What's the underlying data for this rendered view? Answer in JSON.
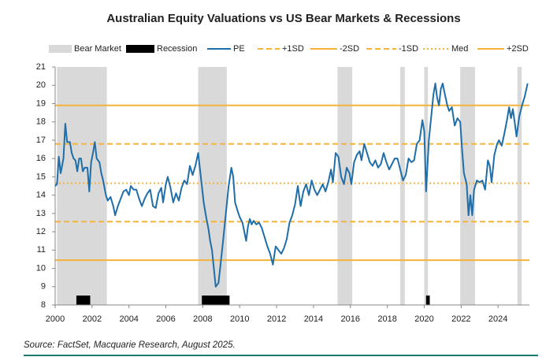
{
  "chart_data": {
    "type": "line",
    "title": "Australian Equity Valuations vs US Bear Markets & Recessions",
    "source": "Source: FactSet, Macquarie Research, August 2025.",
    "xlim": [
      2000,
      2025.7
    ],
    "xticks": [
      2000,
      2002,
      2004,
      2006,
      2008,
      2010,
      2012,
      2014,
      2016,
      2018,
      2020,
      2022,
      2024
    ],
    "ylim": [
      8,
      21
    ],
    "yticks": [
      8,
      9,
      10,
      11,
      12,
      13,
      14,
      15,
      16,
      17,
      18,
      19,
      20,
      21
    ],
    "grid": false,
    "bear_markets": {
      "name": "Bear Market",
      "color": "#d9d9d9",
      "ranges": [
        [
          2000.1,
          2002.8
        ],
        [
          2007.75,
          2009.3
        ],
        [
          2015.3,
          2016.1
        ],
        [
          2018.7,
          2018.95
        ],
        [
          2020.0,
          2020.2
        ],
        [
          2021.95,
          2022.75
        ],
        [
          2025.05,
          2025.28
        ]
      ]
    },
    "recessions": {
      "name": "Recession",
      "color": "#000000",
      "ranges": [
        [
          2001.15,
          2001.9
        ],
        [
          2007.95,
          2009.45
        ],
        [
          2020.1,
          2020.3
        ]
      ]
    },
    "x": [
      2000.0,
      2000.1,
      2000.2,
      2000.3,
      2000.45,
      2000.55,
      2000.65,
      2000.8,
      2000.9,
      2001.0,
      2001.1,
      2001.2,
      2001.3,
      2001.4,
      2001.5,
      2001.6,
      2001.75,
      2001.85,
      2001.95,
      2002.05,
      2002.15,
      2002.25,
      2002.4,
      2002.5,
      2002.6,
      2002.75,
      2002.85,
      2003.0,
      2003.15,
      2003.25,
      2003.4,
      2003.55,
      2003.7,
      2003.85,
      2004.0,
      2004.1,
      2004.25,
      2004.4,
      2004.55,
      2004.7,
      2004.85,
      2005.0,
      2005.15,
      2005.3,
      2005.45,
      2005.6,
      2005.75,
      2005.85,
      2006.0,
      2006.1,
      2006.25,
      2006.4,
      2006.55,
      2006.7,
      2006.85,
      2007.0,
      2007.15,
      2007.3,
      2007.45,
      2007.6,
      2007.75,
      2007.85,
      2007.95,
      2008.05,
      2008.2,
      2008.3,
      2008.4,
      2008.5,
      2008.6,
      2008.7,
      2008.85,
      2008.95,
      2009.1,
      2009.25,
      2009.4,
      2009.55,
      2009.65,
      2009.75,
      2009.9,
      2010.0,
      2010.15,
      2010.25,
      2010.35,
      2010.45,
      2010.55,
      2010.65,
      2010.75,
      2010.9,
      2011.05,
      2011.2,
      2011.35,
      2011.5,
      2011.65,
      2011.8,
      2011.95,
      2012.1,
      2012.25,
      2012.4,
      2012.55,
      2012.7,
      2012.85,
      2013.0,
      2013.15,
      2013.3,
      2013.45,
      2013.6,
      2013.75,
      2013.9,
      2014.05,
      2014.2,
      2014.35,
      2014.5,
      2014.65,
      2014.8,
      2014.95,
      2015.05,
      2015.2,
      2015.35,
      2015.5,
      2015.65,
      2015.8,
      2015.95,
      2016.05,
      2016.2,
      2016.35,
      2016.5,
      2016.6,
      2016.75,
      2016.9,
      2017.05,
      2017.2,
      2017.35,
      2017.5,
      2017.65,
      2017.8,
      2017.95,
      2018.1,
      2018.25,
      2018.4,
      2018.55,
      2018.7,
      2018.85,
      2019.0,
      2019.15,
      2019.3,
      2019.45,
      2019.6,
      2019.75,
      2019.9,
      2020.0,
      2020.1,
      2020.25,
      2020.4,
      2020.5,
      2020.6,
      2020.7,
      2020.8,
      2020.9,
      2021.0,
      2021.1,
      2021.25,
      2021.35,
      2021.5,
      2021.65,
      2021.8,
      2021.95,
      2022.05,
      2022.15,
      2022.3,
      2022.4,
      2022.5,
      2022.6,
      2022.7,
      2022.85,
      2023.0,
      2023.15,
      2023.3,
      2023.45,
      2023.55,
      2023.65,
      2023.8,
      2023.95,
      2024.05,
      2024.2,
      2024.35,
      2024.5,
      2024.6,
      2024.7,
      2024.8,
      2024.9,
      2025.0,
      2025.15,
      2025.3,
      2025.45,
      2025.6
    ],
    "series": [
      {
        "name": "PE",
        "color": "#1f6ea8",
        "values": [
          14.5,
          14.6,
          16.1,
          15.2,
          16.0,
          17.9,
          16.9,
          16.9,
          16.3,
          16.0,
          15.9,
          15.3,
          16.0,
          16.0,
          15.3,
          15.5,
          15.5,
          14.2,
          15.8,
          16.3,
          16.9,
          16.0,
          15.8,
          15.2,
          14.8,
          14.0,
          13.7,
          13.9,
          13.4,
          12.9,
          13.4,
          13.8,
          14.2,
          14.3,
          14.0,
          14.5,
          14.3,
          14.3,
          13.8,
          13.4,
          13.8,
          14.1,
          14.3,
          13.4,
          13.3,
          14.1,
          14.4,
          13.6,
          14.6,
          15.0,
          14.4,
          13.6,
          14.1,
          13.7,
          14.4,
          14.8,
          14.6,
          15.6,
          15.1,
          15.6,
          16.3,
          15.4,
          14.5,
          13.6,
          12.7,
          12.2,
          11.5,
          11.0,
          10.0,
          9.0,
          9.2,
          10.1,
          11.5,
          13.0,
          14.5,
          15.5,
          15.0,
          13.6,
          13.1,
          12.8,
          12.5,
          12.0,
          11.5,
          12.3,
          12.7,
          12.4,
          12.6,
          12.4,
          12.5,
          12.2,
          11.7,
          11.2,
          10.8,
          10.2,
          11.2,
          11.0,
          10.8,
          11.1,
          11.6,
          12.5,
          12.9,
          13.5,
          14.5,
          13.4,
          14.2,
          14.6,
          14.0,
          14.8,
          14.3,
          14.0,
          14.3,
          14.6,
          14.2,
          14.7,
          15.4,
          14.7,
          16.3,
          16.1,
          15.0,
          14.6,
          15.5,
          15.2,
          14.6,
          15.8,
          16.2,
          16.4,
          15.9,
          16.8,
          16.3,
          15.8,
          15.6,
          15.9,
          15.5,
          15.7,
          16.3,
          15.8,
          15.4,
          15.7,
          16.0,
          16.0,
          15.4,
          14.8,
          15.1,
          16.0,
          15.8,
          15.9,
          16.8,
          17.0,
          18.1,
          17.5,
          14.2,
          17.0,
          18.5,
          19.5,
          20.1,
          19.3,
          18.9,
          19.8,
          20.1,
          19.6,
          18.9,
          18.6,
          18.8,
          17.8,
          18.2,
          18.0,
          16.5,
          15.2,
          14.6,
          12.9,
          14.0,
          12.9,
          14.3,
          14.8,
          14.7,
          14.8,
          14.3,
          15.9,
          15.6,
          14.7,
          16.2,
          16.8,
          17.0,
          16.7,
          17.4,
          18.2,
          18.8,
          18.2,
          18.7,
          18.0,
          17.2,
          18.3,
          18.9,
          19.4,
          20.1
        ]
      }
    ],
    "reference_lines": [
      {
        "name": "+1SD",
        "value": 16.8,
        "color": "#f6b33c",
        "style": "dashed"
      },
      {
        "name": "-2SD",
        "value": 10.45,
        "color": "#f6b33c",
        "style": "solid"
      },
      {
        "name": "-1SD",
        "value": 12.55,
        "color": "#f6b33c",
        "style": "dashed"
      },
      {
        "name": "Med",
        "value": 14.65,
        "color": "#f6b33c",
        "style": "dotted"
      },
      {
        "name": "+2SD",
        "value": 18.9,
        "color": "#f6b33c",
        "style": "solid"
      }
    ]
  }
}
